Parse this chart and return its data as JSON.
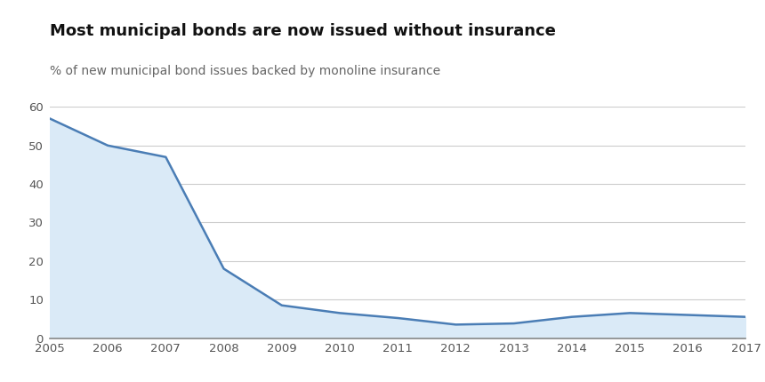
{
  "title": "Most municipal bonds are now issued without insurance",
  "subtitle": "% of new municipal bond issues backed by monoline insurance",
  "x_values": [
    2005,
    2006,
    2007,
    2008,
    2009,
    2010,
    2011,
    2012,
    2013,
    2014,
    2015,
    2016,
    2017
  ],
  "y_values": [
    57,
    50,
    47,
    18,
    8.5,
    6.5,
    5.2,
    3.5,
    3.8,
    5.5,
    6.5,
    6.0,
    5.5
  ],
  "line_color": "#4a7db5",
  "fill_color": "#daeaf7",
  "background_color": "#ffffff",
  "ylim": [
    0,
    60
  ],
  "yticks": [
    0,
    10,
    20,
    30,
    40,
    50,
    60
  ],
  "xlim": [
    2005,
    2017
  ],
  "xticks": [
    2005,
    2006,
    2007,
    2008,
    2009,
    2010,
    2011,
    2012,
    2013,
    2014,
    2015,
    2016,
    2017
  ],
  "grid_color": "#cccccc",
  "title_fontsize": 13,
  "subtitle_fontsize": 10,
  "tick_fontsize": 9.5,
  "line_width": 1.8
}
